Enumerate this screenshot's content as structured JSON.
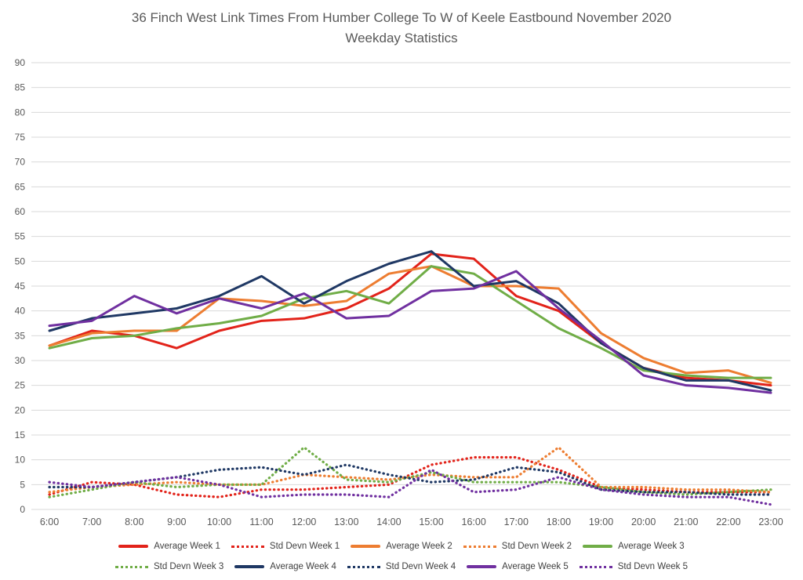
{
  "title": {
    "line1": "36 Finch West Link Times From Humber College To W of Keele Eastbound November 2020",
    "line2": "Weekday Statistics"
  },
  "colors": {
    "week1": "#E2231A",
    "week2": "#ED7D31",
    "week3": "#70AD47",
    "week4": "#1F3864",
    "week5": "#7030A0",
    "gridline": "#D9D9D9",
    "axis_text": "#595959",
    "legend_text": "#404040",
    "background": "#FFFFFF"
  },
  "chart_data": {
    "type": "line",
    "title": "36 Finch West Link Times From Humber College To W of Keele Eastbound November 2020 Weekday Statistics",
    "xlabel": "",
    "ylabel": "",
    "x": [
      "6:00",
      "7:00",
      "8:00",
      "9:00",
      "10:00",
      "11:00",
      "12:00",
      "13:00",
      "14:00",
      "15:00",
      "16:00",
      "17:00",
      "18:00",
      "19:00",
      "20:00",
      "21:00",
      "22:00",
      "23:00"
    ],
    "y_axis": {
      "min": 0,
      "max": 90,
      "step": 5
    },
    "grid": true,
    "legend_position": "bottom",
    "legend_rows": [
      5,
      5
    ],
    "series": [
      {
        "name": "Average Week 1",
        "style": "solid",
        "color": "#E2231A",
        "values": [
          33,
          36,
          35,
          32.5,
          36,
          38,
          38.5,
          40.5,
          44.5,
          51.5,
          50.5,
          43,
          40,
          33.5,
          28.5,
          26.5,
          26,
          25
        ]
      },
      {
        "name": "Std Devn Week 1",
        "style": "dotted",
        "color": "#E2231A",
        "values": [
          3,
          5.5,
          5,
          3,
          2.5,
          4,
          4,
          4.5,
          5,
          9,
          10.5,
          10.5,
          8,
          4.5,
          4,
          3.5,
          3.5,
          3.5
        ]
      },
      {
        "name": "Average Week 2",
        "style": "solid",
        "color": "#ED7D31",
        "values": [
          33,
          35.5,
          36,
          36,
          42.5,
          42,
          41,
          42,
          47.5,
          49,
          45,
          45,
          44.5,
          35.5,
          30.5,
          27.5,
          28,
          25.5
        ]
      },
      {
        "name": "Std Devn Week 2",
        "style": "dotted",
        "color": "#ED7D31",
        "values": [
          3.5,
          4.5,
          5,
          5.5,
          5,
          5,
          7,
          6.5,
          6,
          7,
          6.5,
          6.5,
          12.5,
          4.5,
          4.5,
          4,
          4,
          3.5
        ]
      },
      {
        "name": "Average Week 3",
        "style": "solid",
        "color": "#70AD47",
        "values": [
          32.5,
          34.5,
          35,
          36.5,
          37.5,
          39,
          42.5,
          44,
          41.5,
          49,
          47.5,
          42,
          36.5,
          32.5,
          28,
          27,
          26.5,
          26.5
        ]
      },
      {
        "name": "Std Devn Week 3",
        "style": "dotted",
        "color": "#70AD47",
        "values": [
          2.5,
          4,
          5.5,
          4.5,
          5,
          5,
          12.5,
          6,
          5.5,
          7.5,
          5.5,
          5.5,
          5.5,
          4.5,
          3.5,
          3,
          3.5,
          4
        ]
      },
      {
        "name": "Average Week 4",
        "style": "solid",
        "color": "#1F3864",
        "values": [
          36,
          38.5,
          39.5,
          40.5,
          43,
          47,
          41.5,
          46,
          49.5,
          52,
          45,
          46,
          41.5,
          33.5,
          28.5,
          26,
          26,
          24
        ]
      },
      {
        "name": "Std Devn Week 4",
        "style": "dotted",
        "color": "#1F3864",
        "values": [
          4.5,
          4.5,
          5.5,
          6.5,
          8,
          8.5,
          7,
          9,
          7,
          5.5,
          6,
          8.5,
          7.5,
          4,
          3.5,
          3.5,
          3,
          3
        ]
      },
      {
        "name": "Average Week 5",
        "style": "solid",
        "color": "#7030A0",
        "values": [
          37,
          38,
          43,
          39.5,
          42.5,
          40.5,
          43.5,
          38.5,
          39,
          44,
          44.5,
          48,
          40.5,
          34,
          27,
          25,
          24.5,
          23.5
        ]
      },
      {
        "name": "Std Devn Week 5",
        "style": "dotted",
        "color": "#7030A0",
        "values": [
          5.5,
          4.5,
          5.5,
          6.5,
          5,
          2.5,
          3,
          3,
          2.5,
          8,
          3.5,
          4,
          6.5,
          4,
          3,
          2.5,
          2.5,
          1
        ]
      }
    ]
  }
}
